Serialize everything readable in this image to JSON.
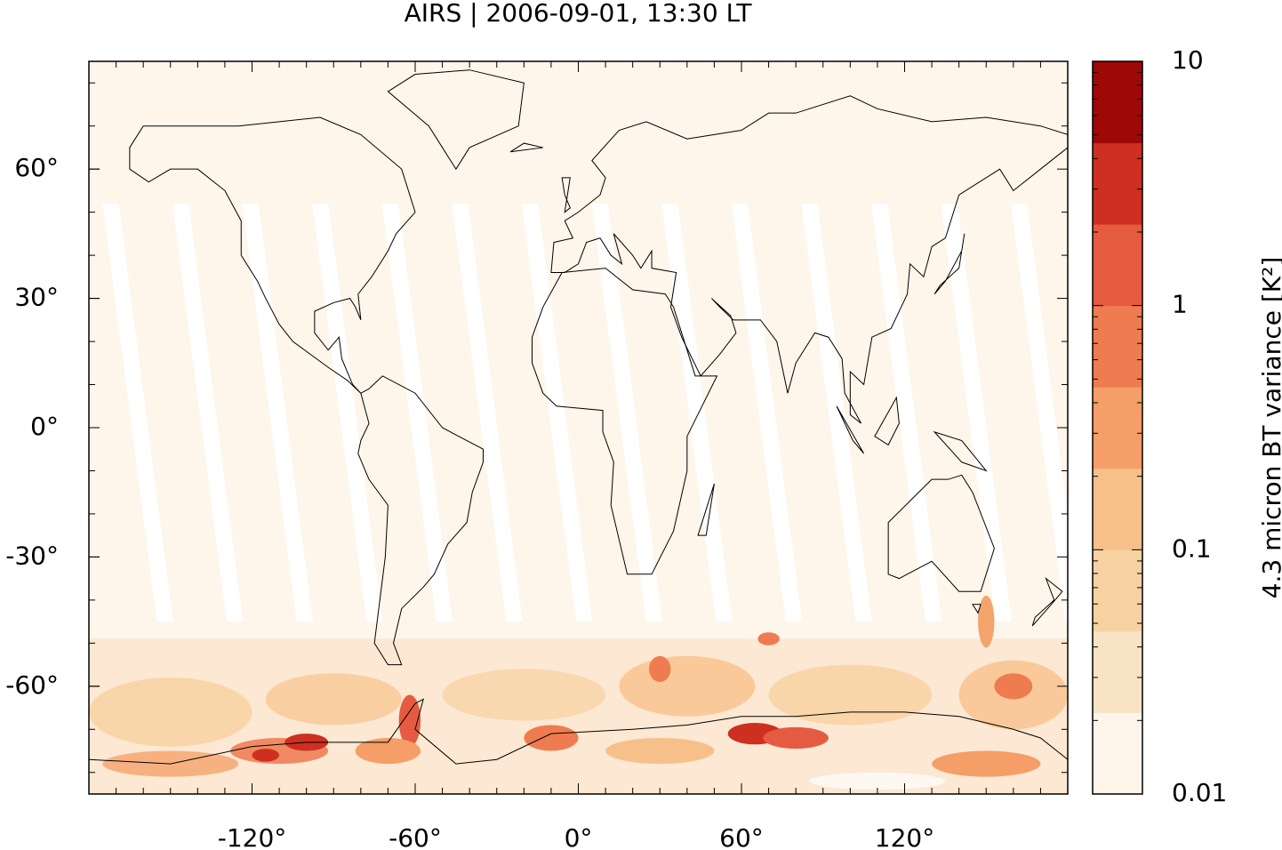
{
  "chart_data": {
    "type": "map",
    "title": "AIRS | 2006-09-01, 13:30 LT",
    "xlim": [
      -180,
      180
    ],
    "ylim": [
      -85,
      85
    ],
    "xticks": [
      {
        "value": -120,
        "label": "-120°"
      },
      {
        "value": -60,
        "label": "-60°"
      },
      {
        "value": 0,
        "label": "0°"
      },
      {
        "value": 60,
        "label": "60°"
      },
      {
        "value": 120,
        "label": "120°"
      }
    ],
    "yticks": [
      {
        "value": 60,
        "label": "60°"
      },
      {
        "value": 30,
        "label": "30°"
      },
      {
        "value": 0,
        "label": "0°"
      },
      {
        "value": -30,
        "label": "-30°"
      },
      {
        "value": -60,
        "label": "-60°"
      }
    ],
    "colorbar": {
      "label": "4.3 micron BT variance [K²]",
      "scale": "log",
      "lim": [
        0.01,
        10
      ],
      "ticks": [
        0.01,
        0.1,
        1,
        10
      ],
      "colors": [
        "#fef4e9",
        "#f8e3c5",
        "#f6d2a3",
        "#f7c08b",
        "#f59e67",
        "#ee7c50",
        "#e55b41",
        "#cd3020",
        "#9e0806"
      ]
    }
  }
}
